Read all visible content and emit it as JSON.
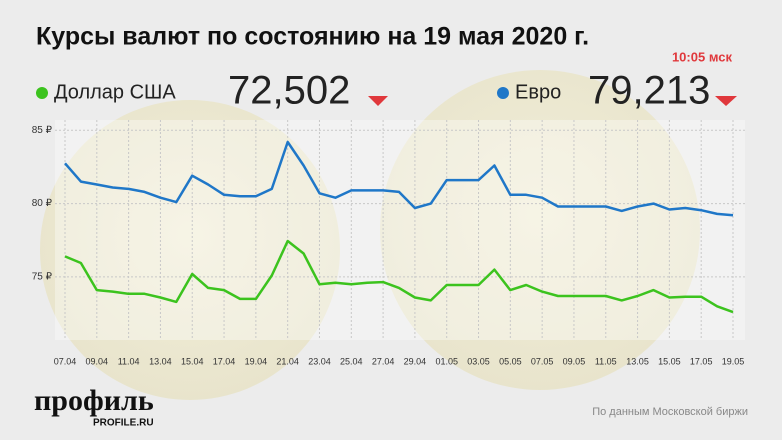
{
  "chart_data": {
    "type": "line",
    "title": "Курсы валют по состоянию на 19 мая 2020 г.",
    "time": "10:05 мск",
    "categories": [
      "07.04",
      null,
      "09.04",
      null,
      "11.04",
      null,
      "13.04",
      null,
      "15.04",
      null,
      "17.04",
      null,
      "19.04",
      null,
      "21.04",
      null,
      "23.04",
      null,
      "25.04",
      null,
      "27.04",
      null,
      "29.04",
      null,
      "01.05",
      null,
      "03.05",
      null,
      "05.05",
      null,
      "07.05",
      null,
      "09.05",
      null,
      "11.05",
      null,
      "13.05",
      null,
      "15.05",
      null,
      "17.05",
      null,
      "19.05"
    ],
    "series": [
      {
        "name": "Доллар США",
        "color": "#3cc31e",
        "current_label": "72,502",
        "values": [
          76.4,
          75.95,
          74.1,
          74.0,
          73.85,
          73.85,
          73.6,
          73.3,
          75.2,
          74.25,
          74.1,
          73.5,
          73.5,
          75.1,
          77.45,
          76.6,
          74.5,
          74.6,
          74.5,
          74.6,
          74.65,
          74.25,
          73.6,
          73.4,
          74.45,
          74.45,
          74.45,
          75.5,
          74.1,
          74.45,
          74.0,
          73.7,
          73.7,
          73.7,
          73.7,
          73.4,
          73.7,
          74.1,
          73.6,
          73.65,
          73.65,
          73.0,
          72.6
        ]
      },
      {
        "name": "Евро",
        "color": "#1f77c8",
        "current_label": "79,213",
        "values": [
          82.75,
          81.5,
          81.3,
          81.1,
          81.0,
          80.8,
          80.4,
          80.1,
          81.9,
          81.3,
          80.6,
          80.5,
          80.5,
          81.0,
          84.2,
          82.6,
          80.7,
          80.4,
          80.9,
          80.9,
          80.9,
          80.8,
          79.7,
          80.0,
          81.6,
          81.6,
          81.6,
          82.6,
          80.6,
          80.6,
          80.4,
          79.8,
          79.8,
          79.8,
          79.8,
          79.5,
          79.8,
          80.0,
          79.6,
          79.7,
          79.55,
          79.3,
          79.2
        ]
      }
    ],
    "ylim": [
      70.7,
      85.7
    ],
    "yticks": [
      {
        "value": 75,
        "label": "75 ₽"
      },
      {
        "value": 80,
        "label": "80 ₽"
      },
      {
        "value": 85,
        "label": "85 ₽"
      }
    ],
    "grid": true,
    "logo": "профиль",
    "logo_site": "PROFILE.RU",
    "source": "По данным Московской биржи"
  }
}
